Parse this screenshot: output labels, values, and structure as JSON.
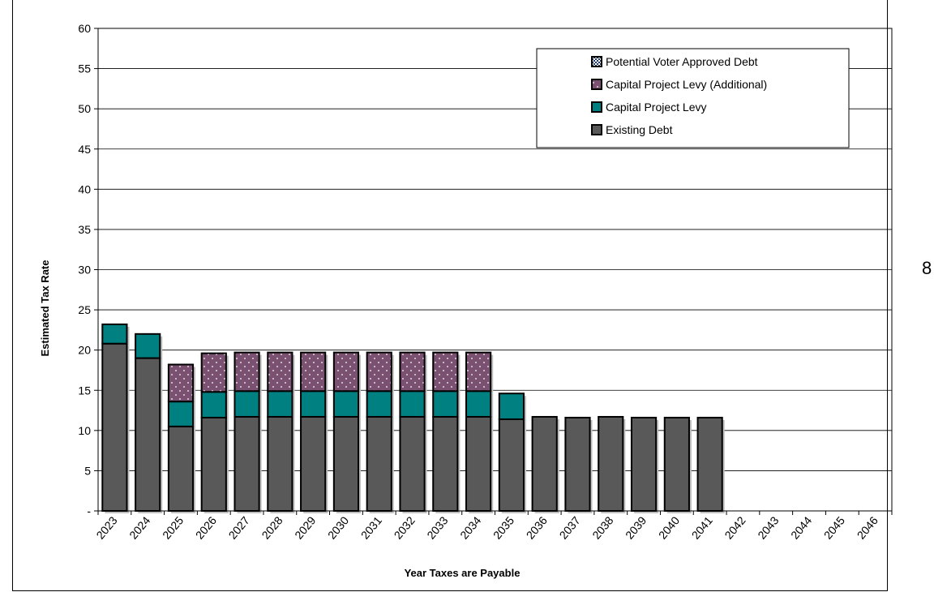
{
  "side_note": "8",
  "chart_data": {
    "type": "bar",
    "stacked": true,
    "title": "",
    "xlabel": "Year Taxes are Payable",
    "ylabel": "Estimated Tax Rate",
    "ylim": [
      0,
      60
    ],
    "yticks": [
      0,
      5,
      10,
      15,
      20,
      25,
      30,
      35,
      40,
      45,
      50,
      55,
      60
    ],
    "ytick_labels": [
      "-",
      "5",
      "10",
      "15",
      "20",
      "25",
      "30",
      "35",
      "40",
      "45",
      "50",
      "55",
      "60"
    ],
    "grid": true,
    "legend_position": "top-right",
    "categories": [
      "2023",
      "2024",
      "2025",
      "2026",
      "2027",
      "2028",
      "2029",
      "2030",
      "2031",
      "2032",
      "2033",
      "2034",
      "2035",
      "2036",
      "2037",
      "2038",
      "2039",
      "2040",
      "2041",
      "2042",
      "2043",
      "2044",
      "2045",
      "2046"
    ],
    "series": [
      {
        "name": "Existing Debt",
        "color": "#595959",
        "values": [
          20.8,
          19.0,
          10.5,
          11.6,
          11.7,
          11.7,
          11.7,
          11.7,
          11.7,
          11.7,
          11.7,
          11.7,
          11.4,
          11.7,
          11.6,
          11.7,
          11.6,
          11.6,
          11.6,
          0,
          0,
          0,
          0,
          0
        ]
      },
      {
        "name": "Capital Project Levy",
        "color": "#008080",
        "values": [
          2.4,
          3.0,
          3.1,
          3.2,
          3.2,
          3.2,
          3.2,
          3.2,
          3.2,
          3.2,
          3.2,
          3.2,
          3.2,
          0,
          0,
          0,
          0,
          0,
          0,
          0,
          0,
          0,
          0,
          0
        ]
      },
      {
        "name": "Capital Project Levy (Additional)",
        "color": "#7a5170",
        "values": [
          0,
          0,
          4.6,
          4.8,
          4.8,
          4.8,
          4.8,
          4.8,
          4.8,
          4.8,
          4.8,
          4.8,
          0,
          0,
          0,
          0,
          0,
          0,
          0,
          0,
          0,
          0,
          0,
          0
        ]
      },
      {
        "name": "Potential Voter Approved Debt",
        "color": "#1f3864",
        "values": [
          0,
          0,
          0,
          0,
          0,
          0,
          0,
          0,
          0,
          0,
          0,
          0,
          0,
          0,
          0,
          0,
          0,
          0,
          0,
          0,
          0,
          0,
          0,
          0
        ]
      }
    ],
    "legend_order": [
      "Potential Voter Approved Debt",
      "Capital Project Levy (Additional)",
      "Capital Project Levy",
      "Existing Debt"
    ]
  }
}
